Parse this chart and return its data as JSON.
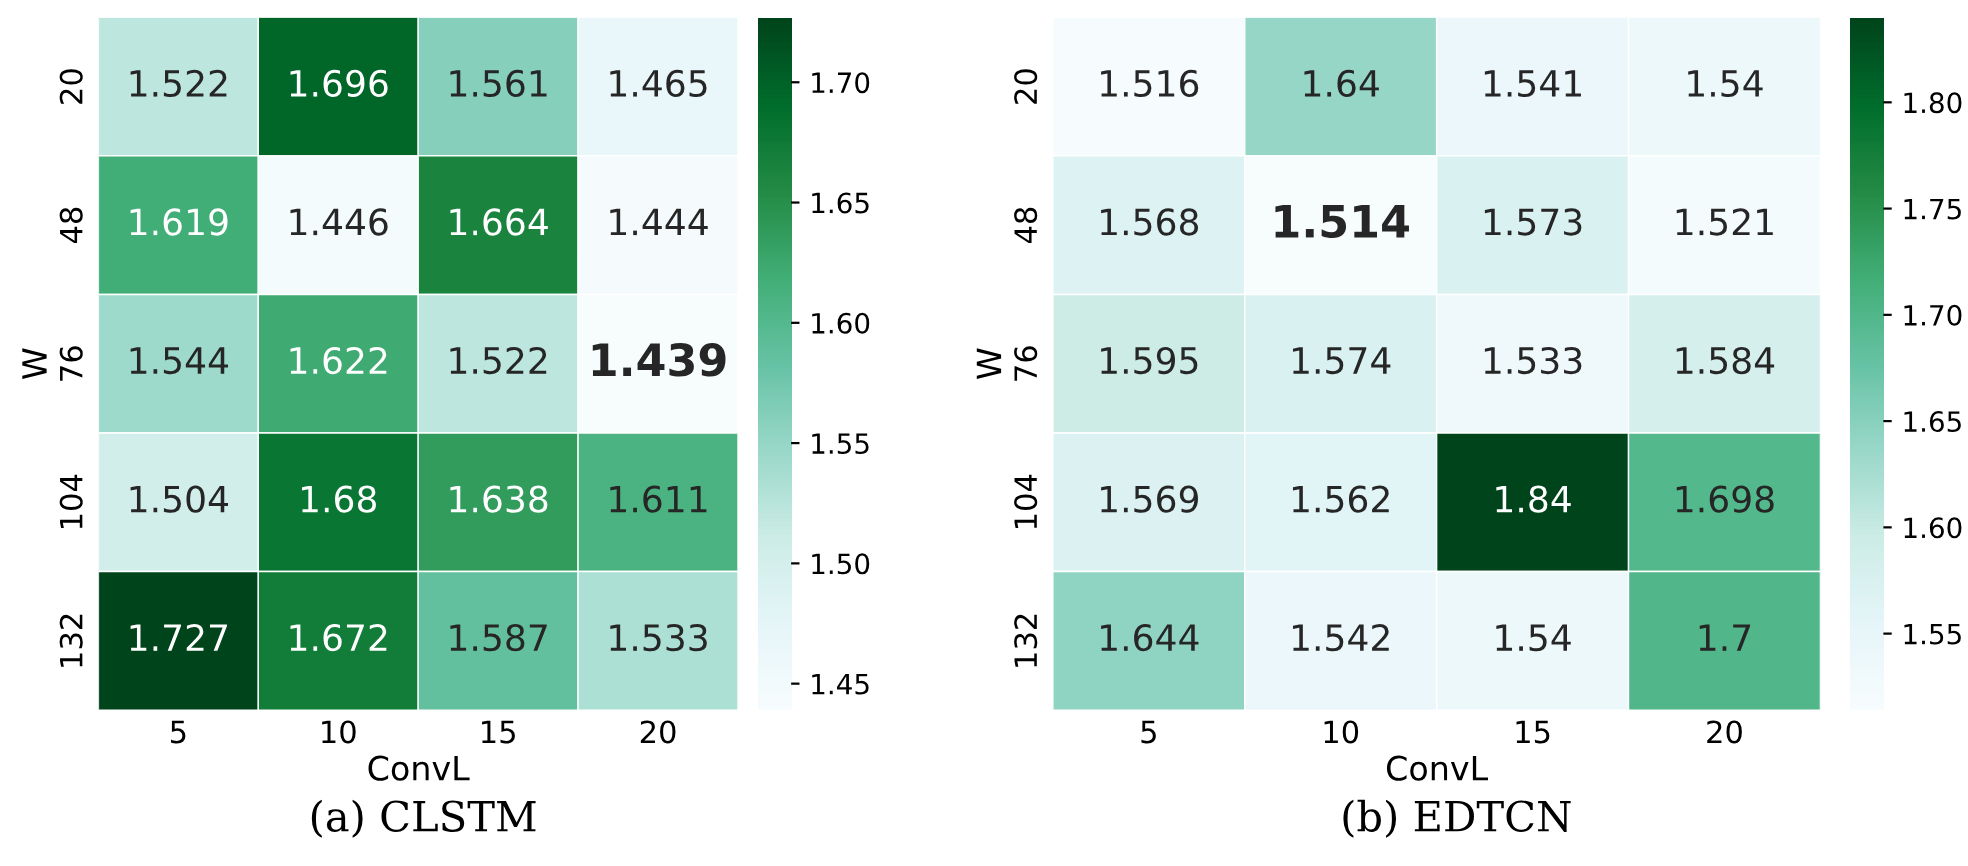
{
  "chart_data": [
    {
      "type": "heatmap",
      "xlabel": "ConvL",
      "ylabel": "W",
      "categories": [
        "5",
        "10",
        "15",
        "20"
      ],
      "y_categories": [
        "20",
        "48",
        "76",
        "104",
        "132"
      ],
      "cells": [
        [
          1.522,
          1.696,
          1.561,
          1.465
        ],
        [
          1.619,
          1.446,
          1.664,
          1.444
        ],
        [
          1.544,
          1.622,
          1.522,
          1.439
        ],
        [
          1.504,
          1.68,
          1.638,
          1.611
        ],
        [
          1.727,
          1.672,
          1.587,
          1.533
        ]
      ],
      "clim": [
        1.439,
        1.727
      ],
      "cticks": [
        1.45,
        {
          "value": 1.5,
          "label": "1.50"
        },
        1.55,
        {
          "value": 1.6,
          "label": "1.60"
        },
        1.65,
        {
          "value": 1.7,
          "label": "1.70"
        }
      ],
      "data_labels": true,
      "annotations": [
        "(a) CLSTM"
      ]
    },
    {
      "type": "heatmap",
      "xlabel": "ConvL",
      "ylabel": "W",
      "categories": [
        "5",
        "10",
        "15",
        "20"
      ],
      "y_categories": [
        "20",
        "48",
        "76",
        "104",
        "132"
      ],
      "cells": [
        [
          1.516,
          1.64,
          1.541,
          1.54
        ],
        [
          1.568,
          1.514,
          1.573,
          1.521
        ],
        [
          1.595,
          1.574,
          1.533,
          1.584
        ],
        [
          1.569,
          1.562,
          1.84,
          1.698
        ],
        [
          1.644,
          1.542,
          1.54,
          1.7
        ]
      ],
      "clim": [
        1.514,
        1.84
      ],
      "cticks": [
        1.55,
        {
          "value": 1.6,
          "label": "1.60"
        },
        1.65,
        {
          "value": 1.7,
          "label": "1.70"
        },
        1.75,
        {
          "value": 1.8,
          "label": "1.80"
        }
      ],
      "data_labels": true,
      "annotations": [
        "(b) EDTCN"
      ]
    }
  ]
}
